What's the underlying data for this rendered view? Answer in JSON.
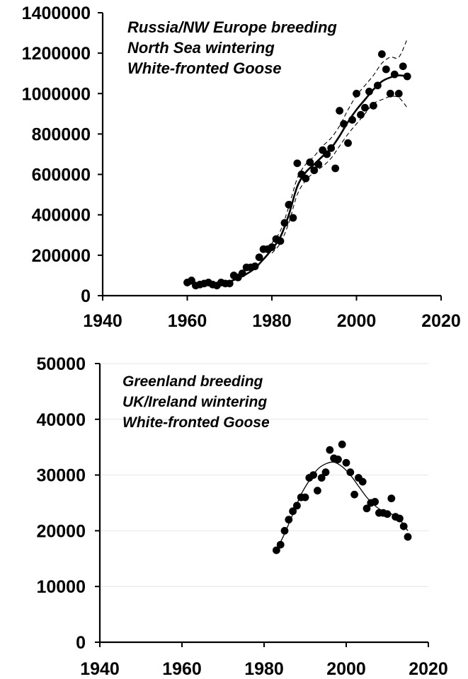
{
  "chart_data": [
    {
      "type": "scatter",
      "title_lines": [
        "Russia/NW Europe breeding",
        "North Sea wintering",
        "White-fronted  Goose"
      ],
      "xlabel": "",
      "ylabel": "",
      "xlim": [
        1940,
        2020
      ],
      "ylim": [
        0,
        1400000
      ],
      "x_ticks": [
        1940,
        1960,
        1980,
        2000,
        2020
      ],
      "y_ticks": [
        0,
        200000,
        400000,
        600000,
        800000,
        1000000,
        1200000,
        1400000
      ],
      "grid": false,
      "series": [
        {
          "style": "points",
          "color": "#000000",
          "x": [
            1960,
            1961,
            1962,
            1963,
            1964,
            1965,
            1966,
            1967,
            1968,
            1969,
            1970,
            1971,
            1972,
            1973,
            1974,
            1975,
            1976,
            1977,
            1978,
            1979,
            1980,
            1981,
            1982,
            1983,
            1984,
            1985,
            1986,
            1987,
            1988,
            1989,
            1990,
            1991,
            1992,
            1993,
            1994,
            1995,
            1996,
            1997,
            1998,
            1999,
            2000,
            2001,
            2002,
            2003,
            2004,
            2005,
            2006,
            2007,
            2008,
            2009,
            2010,
            2011,
            2012
          ],
          "y": [
            65000,
            75000,
            50000,
            55000,
            60000,
            65000,
            55000,
            50000,
            65000,
            60000,
            60000,
            100000,
            90000,
            110000,
            140000,
            140000,
            145000,
            190000,
            230000,
            230000,
            240000,
            280000,
            270000,
            360000,
            450000,
            385000,
            655000,
            600000,
            580000,
            660000,
            620000,
            650000,
            720000,
            700000,
            730000,
            630000,
            915000,
            850000,
            755000,
            870000,
            1000000,
            895000,
            930000,
            1010000,
            940000,
            1040000,
            1195000,
            1120000,
            1000000,
            1095000,
            1000000,
            1135000,
            1085000
          ]
        },
        {
          "style": "line",
          "color": "#000000",
          "x": [
            1960,
            1965,
            1970,
            1975,
            1978,
            1980,
            1982,
            1984,
            1986,
            1988,
            1990,
            1992,
            1994,
            1996,
            1998,
            2000,
            2002,
            2004,
            2006,
            2008,
            2010,
            2012
          ],
          "y": [
            60000,
            58000,
            70000,
            120000,
            180000,
            230000,
            290000,
            400000,
            540000,
            610000,
            650000,
            690000,
            730000,
            790000,
            860000,
            920000,
            970000,
            1020000,
            1060000,
            1080000,
            1090000,
            1085000
          ]
        },
        {
          "style": "dashed",
          "color": "#000000",
          "x": [
            1980,
            1982,
            1984,
            1986,
            1988,
            1990,
            1992,
            1994,
            1996,
            1998,
            2000,
            2002,
            2004,
            2006,
            2008,
            2010,
            2012
          ],
          "y": [
            260000,
            320000,
            440000,
            580000,
            650000,
            690000,
            740000,
            780000,
            840000,
            920000,
            990000,
            1040000,
            1090000,
            1150000,
            1180000,
            1180000,
            1270000
          ]
        },
        {
          "style": "dashed",
          "color": "#000000",
          "x": [
            1980,
            1982,
            1984,
            1986,
            1988,
            1990,
            1992,
            1994,
            1996,
            1998,
            2000,
            2002,
            2004,
            2006,
            2008,
            2010,
            2012
          ],
          "y": [
            210000,
            260000,
            360000,
            500000,
            570000,
            610000,
            640000,
            680000,
            740000,
            800000,
            850000,
            900000,
            950000,
            970000,
            985000,
            980000,
            930000
          ]
        }
      ]
    },
    {
      "type": "scatter",
      "title_lines": [
        "Greenland breeding",
        "UK/Ireland wintering",
        "White-fronted Goose"
      ],
      "xlabel": "",
      "ylabel": "",
      "xlim": [
        1940,
        2020
      ],
      "ylim": [
        0,
        50000
      ],
      "x_ticks": [
        1940,
        1960,
        1980,
        2000,
        2020
      ],
      "y_ticks": [
        0,
        10000,
        20000,
        30000,
        40000,
        50000
      ],
      "grid": true,
      "series": [
        {
          "style": "points",
          "color": "#000000",
          "x": [
            1983,
            1984,
            1985,
            1986,
            1987,
            1988,
            1989,
            1990,
            1991,
            1992,
            1993,
            1994,
            1995,
            1996,
            1997,
            1998,
            1999,
            2000,
            2001,
            2002,
            2003,
            2004,
            2005,
            2006,
            2007,
            2008,
            2009,
            2010,
            2011,
            2012,
            2013,
            2014,
            2015
          ],
          "y": [
            16500,
            17500,
            20000,
            22000,
            23500,
            24500,
            26000,
            26000,
            29500,
            30000,
            27200,
            29500,
            30500,
            34500,
            33000,
            32800,
            35500,
            32200,
            30500,
            26500,
            29500,
            28800,
            24000,
            25000,
            25200,
            23200,
            23200,
            23000,
            25800,
            22500,
            22200,
            20800,
            18900
          ]
        },
        {
          "style": "line",
          "color": "#000000",
          "x": [
            1983,
            1985,
            1987,
            1989,
            1991,
            1993,
            1995,
            1997,
            1999,
            2001,
            2003,
            2005,
            2007,
            2009,
            2011,
            2013,
            2015
          ],
          "y": [
            16500,
            19500,
            23000,
            26500,
            29000,
            31000,
            32000,
            32300,
            31500,
            30000,
            28000,
            26000,
            24500,
            23500,
            23000,
            22000,
            20000
          ]
        }
      ]
    }
  ]
}
